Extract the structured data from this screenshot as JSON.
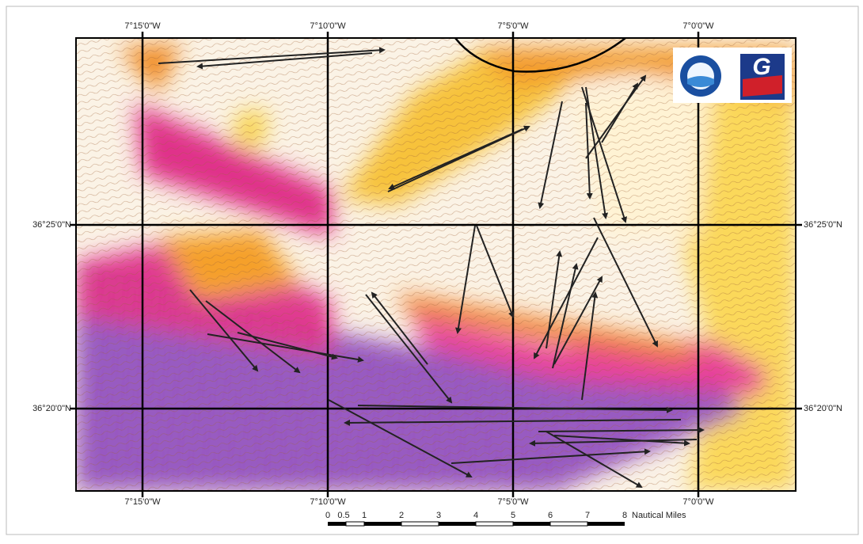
{
  "map": {
    "longitude_labels_top": [
      "7°15'0\"W",
      "7°10'0\"W",
      "7°5'0\"W",
      "7°0'0\"W"
    ],
    "longitude_labels_bottom": [
      "7°15'0\"W",
      "7°10'0\"W",
      "7°5'0\"W",
      "7°0'0\"W"
    ],
    "latitude_labels_left": [
      "36°25'0\"N",
      "36°20'0\"N"
    ],
    "latitude_labels_right": [
      "36°25'0\"N",
      "36°20'0\"N"
    ],
    "scale_bar": {
      "ticks": [
        0,
        0.5,
        1,
        2,
        3,
        4,
        5,
        6,
        7,
        8
      ],
      "unit": "Nautical Miles"
    },
    "logo_text": "G"
  }
}
